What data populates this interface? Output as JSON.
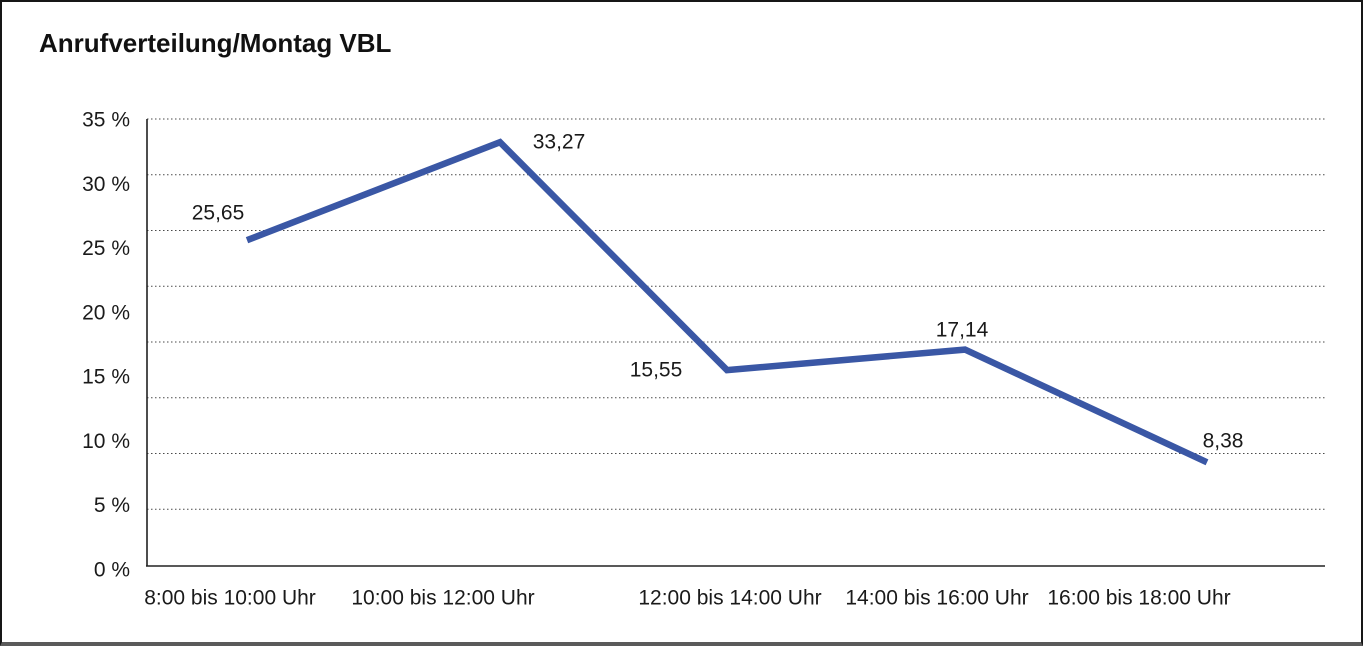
{
  "title": "Anrufverteilung/Montag VBL",
  "chart_data": {
    "type": "line",
    "title": "Anrufverteilung/Montag VBL",
    "categories": [
      "8:00 bis 10:00 Uhr",
      "10:00 bis 12:00 Uhr",
      "12:00 bis 14:00 Uhr",
      "14:00 bis 16:00 Uhr",
      "16:00 bis 18:00 Uhr"
    ],
    "values": [
      25.65,
      33.27,
      15.55,
      17.14,
      8.38
    ],
    "point_labels": [
      "25,65",
      "33,27",
      "15,55",
      "17,14",
      "8,38"
    ],
    "xlabel": "",
    "ylabel": "",
    "y_ticks": [
      0,
      5,
      10,
      15,
      20,
      25,
      30,
      35
    ],
    "y_tick_suffix": " %",
    "ylim": [
      0,
      35
    ],
    "grid": "horizontal-dotted",
    "legend_position": "none",
    "line_color": "#3A57A5",
    "text_color": "#1a1a1a",
    "axis_color": "#222222",
    "grid_color": "#4a4a4a"
  }
}
